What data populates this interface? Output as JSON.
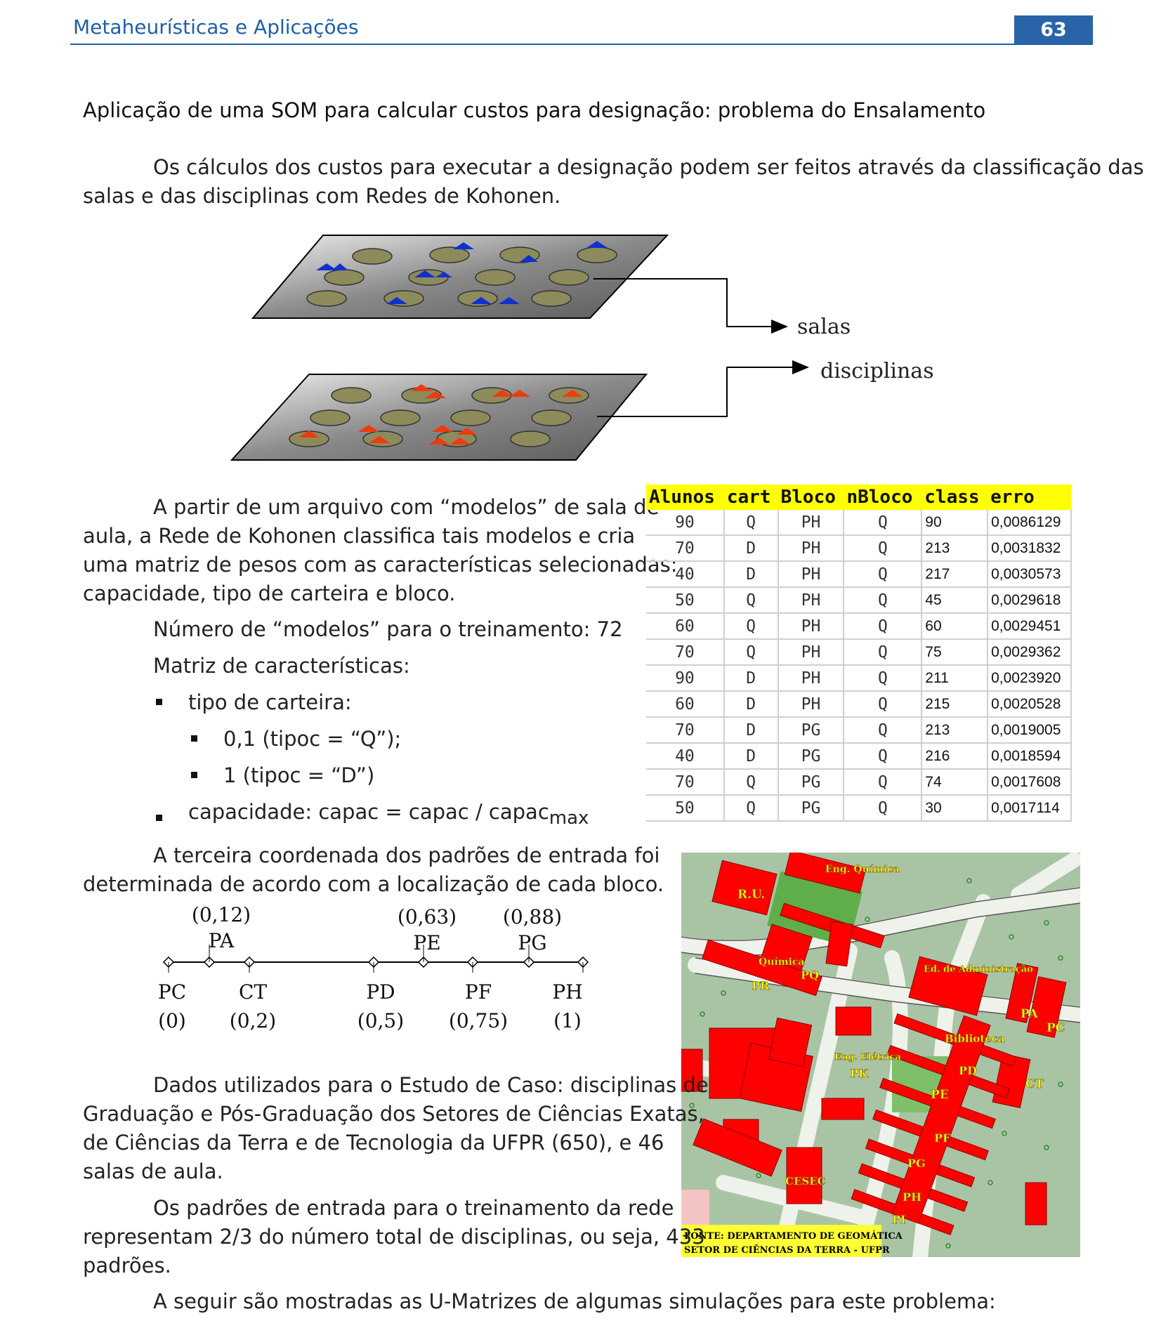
{
  "header": {
    "title": "Metaheurísticas e Aplicações",
    "page": "63"
  },
  "section_title": "Aplicação de uma SOM para calcular custos para designação: problema do Ensalamento",
  "intro": [
    "Os cálculos dos custos para executar a designação podem ser feitos através da classificação das",
    "salas e das disciplinas com Redes de Kohonen."
  ],
  "figure": {
    "label_salas": "salas",
    "label_disciplinas": "disciplinas"
  },
  "left_text": {
    "para1": [
      "A partir de um arquivo com  “modelos” de sala de",
      "aula, a Rede de Kohonen classifica tais modelos e cria",
      "uma matriz de pesos com as características selecionadas:",
      "capacidade, tipo de carteira e bloco."
    ],
    "n_models": "Número de “modelos” para o treinamento: 72",
    "matrix": "Matriz de características:",
    "bullet1": "tipo de carteira:",
    "sub1": "0,1 (tipoc = “Q”);",
    "sub2": "1 (tipoc = “D”)",
    "bullet2": "capacidade: capac = capac / capac",
    "bullet2_sub": "max",
    "para2": [
      "A terceira coordenada dos padrões de entrada foi",
      "determinada de acordo com a localização de cada bloco."
    ]
  },
  "axis": {
    "top": [
      {
        "value": "(0,12)",
        "name": "PA"
      },
      {
        "value": "(0,63)",
        "name": "PE"
      },
      {
        "value": "(0,88)",
        "name": "PG"
      }
    ],
    "bottom": [
      {
        "name": "PC",
        "value": "(0)"
      },
      {
        "name": "CT",
        "value": "(0,2)"
      },
      {
        "name": "PD",
        "value": "(0,5)"
      },
      {
        "name": "PF",
        "value": "(0,75)"
      },
      {
        "name": "PH",
        "value": "(1)"
      }
    ]
  },
  "table": {
    "headers": [
      "Alunos",
      "cart",
      "Bloco",
      "nBloco",
      "class",
      "erro"
    ],
    "rows": [
      [
        "90",
        "Q",
        "PH",
        "Q",
        "90",
        "0,0086129"
      ],
      [
        "70",
        "D",
        "PH",
        "Q",
        "213",
        "0,0031832"
      ],
      [
        "40",
        "D",
        "PH",
        "Q",
        "217",
        "0,0030573"
      ],
      [
        "50",
        "Q",
        "PH",
        "Q",
        "45",
        "0,0029618"
      ],
      [
        "60",
        "Q",
        "PH",
        "Q",
        "60",
        "0,0029451"
      ],
      [
        "70",
        "Q",
        "PH",
        "Q",
        "75",
        "0,0029362"
      ],
      [
        "90",
        "D",
        "PH",
        "Q",
        "211",
        "0,0023920"
      ],
      [
        "60",
        "D",
        "PH",
        "Q",
        "215",
        "0,0020528"
      ],
      [
        "70",
        "D",
        "PG",
        "Q",
        "213",
        "0,0019005"
      ],
      [
        "40",
        "D",
        "PG",
        "Q",
        "216",
        "0,0018594"
      ],
      [
        "70",
        "Q",
        "PG",
        "Q",
        "74",
        "0,0017608"
      ],
      [
        "50",
        "Q",
        "PG",
        "Q",
        "30",
        "0,0017114"
      ]
    ]
  },
  "map": {
    "labels": [
      "R.U.",
      "Eng. Química",
      "Química",
      "PQ",
      "PR",
      "Ed. de Administração",
      "PA",
      "PC",
      "Biblioteca",
      "Eng. Elétrica",
      "PK",
      "PD",
      "CT",
      "PE",
      "PF",
      "PG",
      "CESEC",
      "PH",
      "PI"
    ],
    "source_line1": "FONTE: DEPARTAMENTO DE GEOMÁTICA",
    "source_line2": "SETOR DE CIÊNCIAS DA TERRA - UFPR"
  },
  "bottom_text": {
    "para1": [
      "Dados utilizados para o Estudo de Caso: disciplinas de",
      "Graduação e Pós-Graduação dos Setores de Ciências Exatas,",
      "de Ciências da Terra e de Tecnologia da UFPR (650), e 46",
      "salas de aula."
    ],
    "para2": [
      "Os padrões de entrada para o treinamento da rede",
      "representam 2/3 do número total de disciplinas, ou seja, 433",
      "padrões."
    ],
    "para3": "A seguir são mostradas as U-Matrizes de algumas simulações para este problema:"
  }
}
